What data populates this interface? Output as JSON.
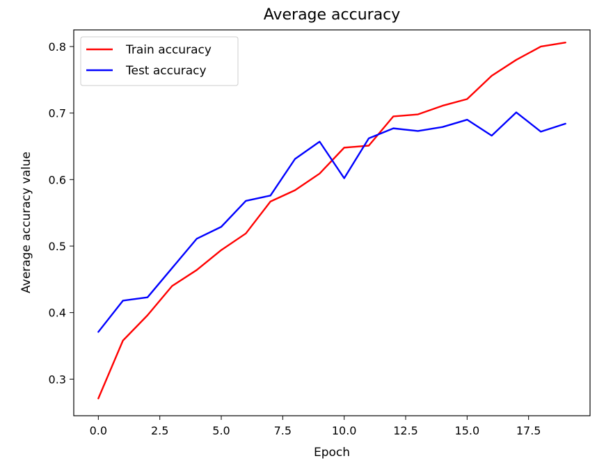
{
  "chart_data": {
    "type": "line",
    "title": "Average accuracy",
    "xlabel": "Epoch",
    "ylabel": "Average accuracy value",
    "xlim": [
      -1,
      20
    ],
    "ylim": [
      0.245,
      0.825
    ],
    "xticks": [
      "0.0",
      "2.5",
      "5.0",
      "7.5",
      "10.0",
      "12.5",
      "15.0",
      "17.5"
    ],
    "yticks": [
      "0.3",
      "0.4",
      "0.5",
      "0.6",
      "0.7",
      "0.8"
    ],
    "grid": false,
    "legend_position": "top-left",
    "x": [
      0,
      1,
      2,
      3,
      4,
      5,
      6,
      7,
      8,
      9,
      10,
      11,
      12,
      13,
      14,
      15,
      16,
      17,
      18,
      19
    ],
    "series": [
      {
        "name": "Train accuracy",
        "color": "#ff0000",
        "values": [
          0.271,
          0.358,
          0.396,
          0.44,
          0.464,
          0.494,
          0.519,
          0.567,
          0.584,
          0.609,
          0.648,
          0.651,
          0.695,
          0.698,
          0.711,
          0.721,
          0.756,
          0.78,
          0.8,
          0.806
        ]
      },
      {
        "name": "Test accuracy",
        "color": "#0000ff",
        "values": [
          0.371,
          0.418,
          0.423,
          0.467,
          0.511,
          0.529,
          0.568,
          0.576,
          0.631,
          0.657,
          0.602,
          0.662,
          0.677,
          0.673,
          0.679,
          0.69,
          0.666,
          0.701,
          0.672,
          0.684
        ]
      }
    ]
  }
}
